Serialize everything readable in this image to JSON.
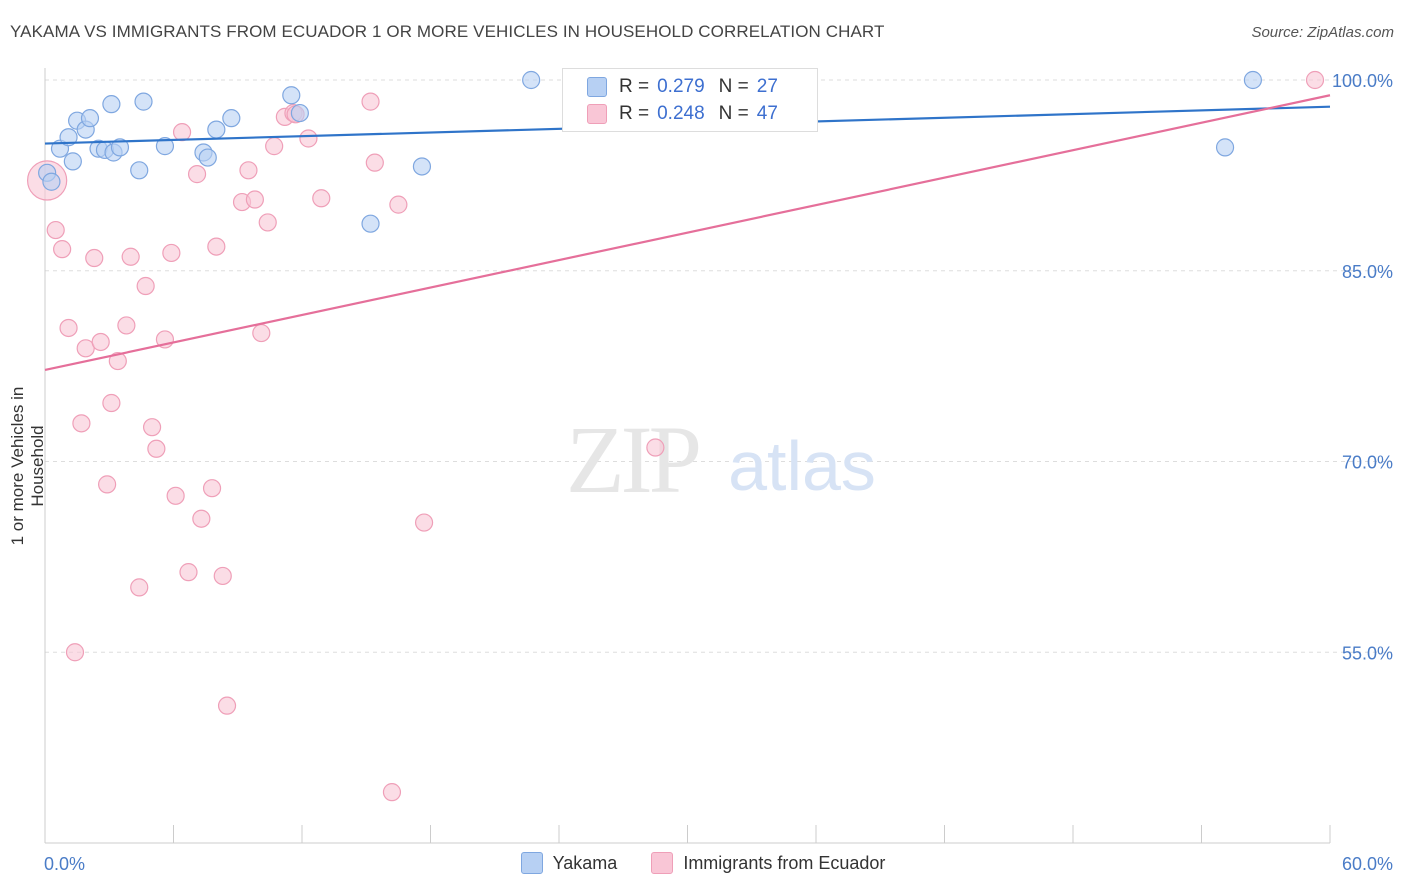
{
  "title": "YAKAMA VS IMMIGRANTS FROM ECUADOR 1 OR MORE VEHICLES IN HOUSEHOLD CORRELATION CHART",
  "source": "Source: ZipAtlas.com",
  "watermark": {
    "zip": "ZIP",
    "atlas": "atlas"
  },
  "legend": {
    "rows": [
      {
        "r_label": "R =",
        "r_value": "0.279",
        "n_label": "N =",
        "n_value": "27"
      },
      {
        "r_label": "R =",
        "r_value": "0.248",
        "n_label": "N =",
        "n_value": "47"
      }
    ]
  },
  "colors": {
    "yakama_fill": "#b7d0f3",
    "yakama_stroke": "#7fa7e0",
    "yakama_line": "#2f74c9",
    "ecuador_fill": "#f9c6d6",
    "ecuador_stroke": "#ef9fb8",
    "ecuador_line": "#e56f9a",
    "axis_text": "#4a7cc7",
    "grid": "#dddddd"
  },
  "chart_data": {
    "type": "scatter",
    "title": "YAKAMA VS IMMIGRANTS FROM ECUADOR 1 OR MORE VEHICLES IN HOUSEHOLD CORRELATION CHART",
    "xlabel": "",
    "ylabel": "1 or more Vehicles in Household",
    "xlim": [
      0,
      60
    ],
    "ylim": [
      40,
      100
    ],
    "x_tick_labels": [
      "0.0%",
      "60.0%"
    ],
    "y_ticks": [
      {
        "value": 100,
        "label": "100.0%"
      },
      {
        "value": 85,
        "label": "85.0%"
      },
      {
        "value": 70,
        "label": "70.0%"
      },
      {
        "value": 55,
        "label": "55.0%"
      }
    ],
    "grid": true,
    "legend_position": "bottom",
    "series": [
      {
        "name": "Yakama",
        "trend": [
          [
            0,
            95.0
          ],
          [
            60,
            97.9
          ]
        ],
        "points": [
          [
            0.1,
            92.7,
            1
          ],
          [
            0.3,
            92.0,
            1
          ],
          [
            0.7,
            94.6,
            1
          ],
          [
            1.1,
            95.5,
            1
          ],
          [
            1.3,
            93.6,
            1
          ],
          [
            1.5,
            96.8,
            1
          ],
          [
            1.9,
            96.1,
            1
          ],
          [
            2.1,
            97.0,
            1
          ],
          [
            2.5,
            94.6,
            1
          ],
          [
            2.8,
            94.5,
            1
          ],
          [
            3.1,
            98.1,
            1
          ],
          [
            3.2,
            94.3,
            1
          ],
          [
            3.5,
            94.7,
            1
          ],
          [
            4.4,
            92.9,
            1
          ],
          [
            4.6,
            98.3,
            1
          ],
          [
            5.6,
            94.8,
            1
          ],
          [
            7.4,
            94.3,
            1
          ],
          [
            7.6,
            93.9,
            1
          ],
          [
            8.0,
            96.1,
            1
          ],
          [
            8.7,
            97.0,
            1
          ],
          [
            11.5,
            98.8,
            1
          ],
          [
            11.9,
            97.4,
            1
          ],
          [
            15.2,
            88.7,
            1
          ],
          [
            17.6,
            93.2,
            1
          ],
          [
            22.7,
            100.0,
            1
          ],
          [
            56.4,
            100.0,
            1
          ],
          [
            55.1,
            94.7,
            1
          ]
        ]
      },
      {
        "name": "Immigrants from Ecuador",
        "trend": [
          [
            0,
            77.2
          ],
          [
            60,
            98.8
          ]
        ],
        "points": [
          [
            0.1,
            92.1,
            2.3
          ],
          [
            0.5,
            88.2,
            1
          ],
          [
            0.8,
            86.7,
            1
          ],
          [
            1.1,
            80.5,
            1
          ],
          [
            1.4,
            55.0,
            1
          ],
          [
            1.7,
            73.0,
            1
          ],
          [
            1.9,
            78.9,
            1
          ],
          [
            2.3,
            86.0,
            1
          ],
          [
            2.6,
            79.4,
            1
          ],
          [
            2.9,
            68.2,
            1
          ],
          [
            3.1,
            74.6,
            1
          ],
          [
            3.4,
            77.9,
            1
          ],
          [
            3.8,
            80.7,
            1
          ],
          [
            4.0,
            86.1,
            1
          ],
          [
            4.4,
            60.1,
            1
          ],
          [
            4.7,
            83.8,
            1
          ],
          [
            5.0,
            72.7,
            1
          ],
          [
            5.2,
            71.0,
            1
          ],
          [
            5.6,
            79.6,
            1
          ],
          [
            5.9,
            86.4,
            1
          ],
          [
            6.1,
            67.3,
            1
          ],
          [
            6.4,
            95.9,
            1
          ],
          [
            6.7,
            61.3,
            1
          ],
          [
            7.1,
            92.6,
            1
          ],
          [
            7.3,
            65.5,
            1
          ],
          [
            7.8,
            67.9,
            1
          ],
          [
            8.0,
            86.9,
            1
          ],
          [
            8.3,
            61.0,
            1
          ],
          [
            8.5,
            50.8,
            1
          ],
          [
            9.2,
            90.4,
            1
          ],
          [
            9.5,
            92.9,
            1
          ],
          [
            9.8,
            90.6,
            1
          ],
          [
            10.1,
            80.1,
            1
          ],
          [
            10.4,
            88.8,
            1
          ],
          [
            10.7,
            94.8,
            1
          ],
          [
            11.2,
            97.1,
            1
          ],
          [
            11.6,
            97.4,
            1
          ],
          [
            12.3,
            95.4,
            1
          ],
          [
            12.9,
            90.7,
            1
          ],
          [
            15.2,
            98.3,
            1
          ],
          [
            15.4,
            93.5,
            1
          ],
          [
            16.2,
            44.0,
            1
          ],
          [
            16.5,
            90.2,
            1
          ],
          [
            17.7,
            65.2,
            1
          ],
          [
            28.5,
            71.1,
            1
          ],
          [
            59.3,
            100.0,
            1
          ],
          [
            11.7,
            97.3,
            1
          ]
        ]
      }
    ]
  },
  "bottom_legend": [
    "Yakama",
    "Immigrants from Ecuador"
  ]
}
